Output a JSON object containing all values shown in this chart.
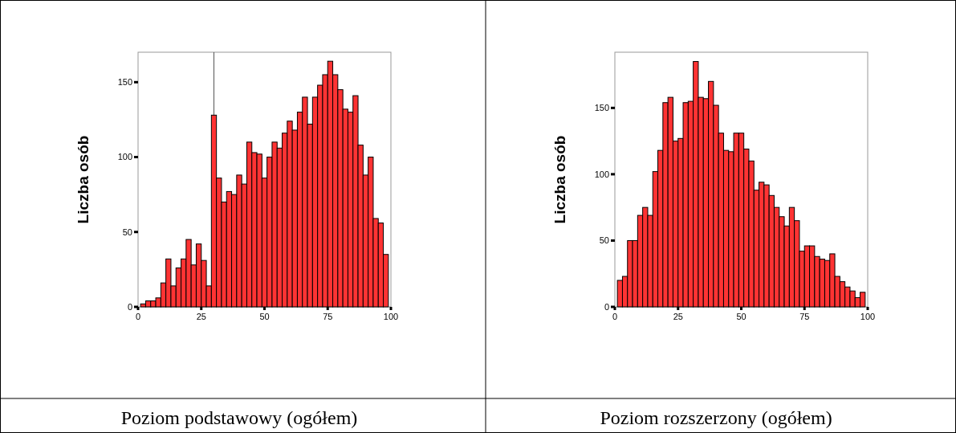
{
  "chart_data": [
    {
      "type": "histogram",
      "xlabel": "Poziom podstawowy (ogółem)",
      "ylabel": "Liczba osób",
      "color": "#ff3333",
      "bins": [
        1,
        3,
        5,
        7,
        9,
        11,
        13,
        15,
        17,
        19,
        21,
        23,
        25,
        27,
        29,
        31,
        33,
        35,
        37,
        39,
        41,
        43,
        45,
        47,
        49,
        51,
        53,
        55,
        57,
        59,
        61,
        63,
        65,
        67,
        69,
        71,
        73,
        75,
        77,
        79,
        81,
        83,
        85,
        87,
        89,
        91,
        93,
        95,
        97,
        99
      ],
      "values": [
        2,
        4,
        4,
        6,
        16,
        32,
        14,
        26,
        32,
        45,
        28,
        42,
        31,
        14,
        128,
        86,
        70,
        77,
        75,
        88,
        82,
        110,
        103,
        102,
        86,
        100,
        110,
        106,
        116,
        124,
        118,
        130,
        140,
        122,
        140,
        148,
        155,
        164,
        155,
        145,
        132,
        130,
        141,
        108,
        88,
        100,
        59,
        56,
        35
      ],
      "xlim": [
        0,
        100
      ],
      "ylim": [
        0,
        170
      ],
      "xticks": [
        0,
        25,
        50,
        75,
        100
      ],
      "yticks": [
        0,
        50,
        100,
        150
      ],
      "grid": false,
      "ref_lines": [
        {
          "axis": "x",
          "value": 30,
          "color": "#555555"
        }
      ]
    },
    {
      "type": "histogram",
      "xlabel": "Poziom rozszerzony (ogółem)",
      "ylabel": "Liczba osób",
      "color": "#ff3333",
      "bins": [
        1,
        3,
        5,
        7,
        9,
        11,
        13,
        15,
        17,
        19,
        21,
        23,
        25,
        27,
        29,
        31,
        33,
        35,
        37,
        39,
        41,
        43,
        45,
        47,
        49,
        51,
        53,
        55,
        57,
        59,
        61,
        63,
        65,
        67,
        69,
        71,
        73,
        75,
        77,
        79,
        81,
        83,
        85,
        87,
        89,
        91,
        93,
        95,
        97,
        99
      ],
      "values": [
        20,
        23,
        50,
        50,
        69,
        75,
        69,
        102,
        118,
        154,
        158,
        125,
        127,
        154,
        155,
        185,
        158,
        157,
        170,
        152,
        131,
        118,
        117,
        131,
        131,
        119,
        110,
        88,
        94,
        92,
        84,
        75,
        68,
        61,
        75,
        65,
        42,
        46,
        46,
        38,
        36,
        35,
        40,
        23,
        19,
        15,
        12,
        7,
        11
      ],
      "xlim": [
        0,
        100
      ],
      "ylim": [
        0,
        192
      ],
      "xticks": [
        0,
        25,
        50,
        75,
        100
      ],
      "yticks": [
        0,
        50,
        100,
        150
      ],
      "grid": false
    }
  ]
}
